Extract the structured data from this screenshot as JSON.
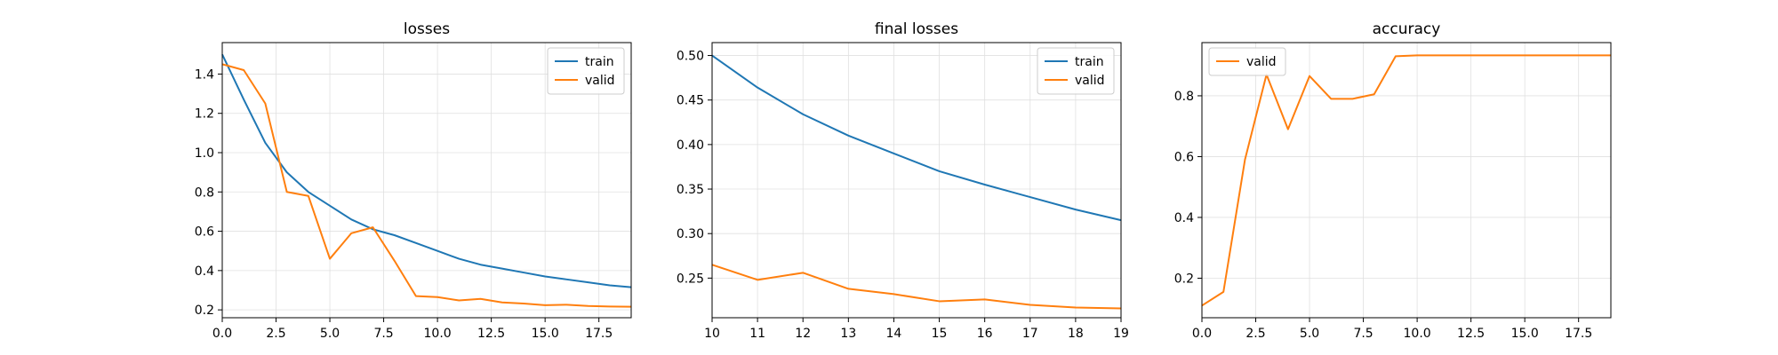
{
  "chart_data": [
    {
      "type": "line",
      "title": "losses",
      "xlabel": "",
      "ylabel": "",
      "xlim": [
        0,
        19
      ],
      "ylim": [
        0.16,
        1.56
      ],
      "xticks": [
        0.0,
        2.5,
        5.0,
        7.5,
        10.0,
        12.5,
        15.0,
        17.5
      ],
      "xtick_labels": [
        "0.0",
        "2.5",
        "5.0",
        "7.5",
        "10.0",
        "12.5",
        "15.0",
        "17.5"
      ],
      "yticks": [
        0.2,
        0.4,
        0.6,
        0.8,
        1.0,
        1.2,
        1.4
      ],
      "ytick_labels": [
        "0.2",
        "0.4",
        "0.6",
        "0.8",
        "1.0",
        "1.2",
        "1.4"
      ],
      "grid": true,
      "legend": "top-right",
      "series": [
        {
          "name": "train",
          "color": "#1f77b4",
          "x": [
            0,
            1,
            2,
            3,
            4,
            5,
            6,
            7,
            8,
            9,
            10,
            11,
            12,
            13,
            14,
            15,
            16,
            17,
            18,
            19
          ],
          "y": [
            1.5,
            1.27,
            1.05,
            0.9,
            0.8,
            0.73,
            0.66,
            0.61,
            0.58,
            0.54,
            0.5,
            0.46,
            0.43,
            0.41,
            0.39,
            0.37,
            0.355,
            0.34,
            0.325,
            0.315
          ]
        },
        {
          "name": "valid",
          "color": "#ff7f0e",
          "x": [
            0,
            1,
            2,
            3,
            4,
            5,
            6,
            7,
            8,
            9,
            10,
            11,
            12,
            13,
            14,
            15,
            16,
            17,
            18,
            19
          ],
          "y": [
            1.45,
            1.42,
            1.25,
            0.8,
            0.78,
            0.46,
            0.59,
            0.62,
            0.45,
            0.27,
            0.265,
            0.248,
            0.256,
            0.238,
            0.232,
            0.224,
            0.226,
            0.22,
            0.217,
            0.216
          ]
        }
      ]
    },
    {
      "type": "line",
      "title": "final losses",
      "xlabel": "",
      "ylabel": "",
      "xlim": [
        10,
        19
      ],
      "ylim": [
        0.2055,
        0.5145
      ],
      "xticks": [
        10,
        11,
        12,
        13,
        14,
        15,
        16,
        17,
        18,
        19
      ],
      "xtick_labels": [
        "10",
        "11",
        "12",
        "13",
        "14",
        "15",
        "16",
        "17",
        "18",
        "19"
      ],
      "yticks": [
        0.25,
        0.3,
        0.35,
        0.4,
        0.45,
        0.5
      ],
      "ytick_labels": [
        "0.25",
        "0.30",
        "0.35",
        "0.40",
        "0.45",
        "0.50"
      ],
      "grid": true,
      "legend": "top-right",
      "series": [
        {
          "name": "train",
          "color": "#1f77b4",
          "x": [
            10,
            11,
            12,
            13,
            14,
            15,
            16,
            17,
            18,
            19
          ],
          "y": [
            0.5,
            0.464,
            0.434,
            0.41,
            0.39,
            0.37,
            0.355,
            0.341,
            0.327,
            0.315
          ]
        },
        {
          "name": "valid",
          "color": "#ff7f0e",
          "x": [
            10,
            11,
            12,
            13,
            14,
            15,
            16,
            17,
            18,
            19
          ],
          "y": [
            0.265,
            0.248,
            0.256,
            0.238,
            0.232,
            0.224,
            0.226,
            0.22,
            0.217,
            0.216
          ]
        }
      ]
    },
    {
      "type": "line",
      "title": "accuracy",
      "xlabel": "",
      "ylabel": "",
      "xlim": [
        0,
        19
      ],
      "ylim": [
        0.07,
        0.975
      ],
      "xticks": [
        0.0,
        2.5,
        5.0,
        7.5,
        10.0,
        12.5,
        15.0,
        17.5
      ],
      "xtick_labels": [
        "0.0",
        "2.5",
        "5.0",
        "7.5",
        "10.0",
        "12.5",
        "15.0",
        "17.5"
      ],
      "yticks": [
        0.2,
        0.4,
        0.6,
        0.8
      ],
      "ytick_labels": [
        "0.2",
        "0.4",
        "0.6",
        "0.8"
      ],
      "grid": true,
      "legend": "top-left",
      "series": [
        {
          "name": "valid",
          "color": "#ff7f0e",
          "x": [
            0,
            1,
            2,
            3,
            4,
            5,
            6,
            7,
            8,
            9,
            10,
            11,
            12,
            13,
            14,
            15,
            16,
            17,
            18,
            19
          ],
          "y": [
            0.11,
            0.155,
            0.59,
            0.87,
            0.69,
            0.865,
            0.79,
            0.79,
            0.805,
            0.93,
            0.933,
            0.933,
            0.933,
            0.933,
            0.933,
            0.933,
            0.933,
            0.933,
            0.933,
            0.933
          ]
        }
      ]
    }
  ]
}
